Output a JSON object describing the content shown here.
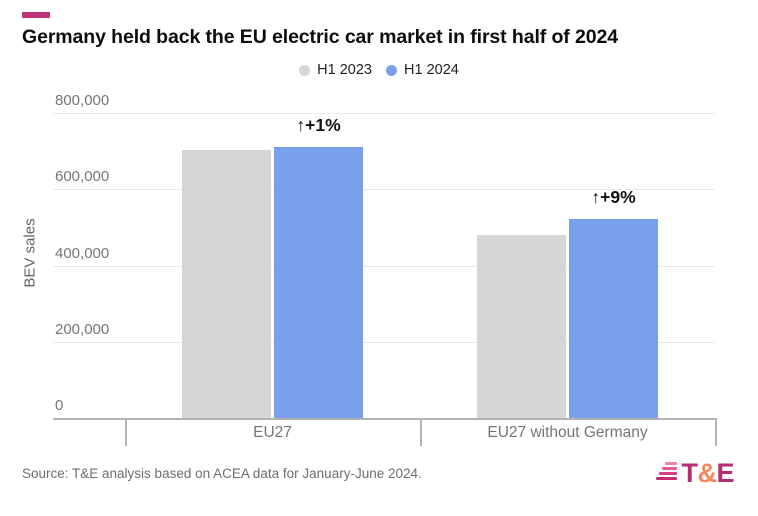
{
  "header": {
    "title": "Germany held back the EU electric car market in first half of 2024"
  },
  "chart_data": {
    "type": "bar",
    "title": "Germany held back the EU electric car market in first half of 2024",
    "categories": [
      "EU27",
      "EU27 without Germany"
    ],
    "series": [
      {
        "name": "H1 2023",
        "color": "#d6d6d6",
        "values": [
          703000,
          480000
        ]
      },
      {
        "name": "H1 2024",
        "color": "#78a0ed",
        "values": [
          710000,
          523000
        ]
      }
    ],
    "annotations": [
      {
        "category_index": 0,
        "series": "H1 2024",
        "text": "↑+1%"
      },
      {
        "category_index": 1,
        "series": "H1 2024",
        "text": "↑+9%"
      }
    ],
    "xlabel": "",
    "ylabel": "BEV sales",
    "ylim": [
      0,
      800000
    ],
    "yticks": [
      {
        "value": 0,
        "label": "0"
      },
      {
        "value": 200000,
        "label": "200,000"
      },
      {
        "value": 400000,
        "label": "400,000"
      },
      {
        "value": 600000,
        "label": "600,000"
      },
      {
        "value": 800000,
        "label": "800,000"
      }
    ],
    "grid": true,
    "legend_position": "top"
  },
  "footer": {
    "source": "Source: T&E analysis based on ACEA data for January-June 2024.",
    "logo": {
      "t": "T",
      "amp": "&",
      "e": "E",
      "colors": {
        "letters": "#b52d74",
        "ampersand": "#f2875c",
        "stripes": [
          "#f27fb2",
          "#e65c98",
          "#d63d82",
          "#c22e72"
        ]
      }
    }
  },
  "colors": {
    "accent_dash": "#bf3474",
    "gridline": "#e9e9e9",
    "axis": "#b3b3b3",
    "tick_label": "#757575",
    "bar_h1_2023": "#d6d6d6",
    "bar_h1_2024": "#78a0ed"
  }
}
